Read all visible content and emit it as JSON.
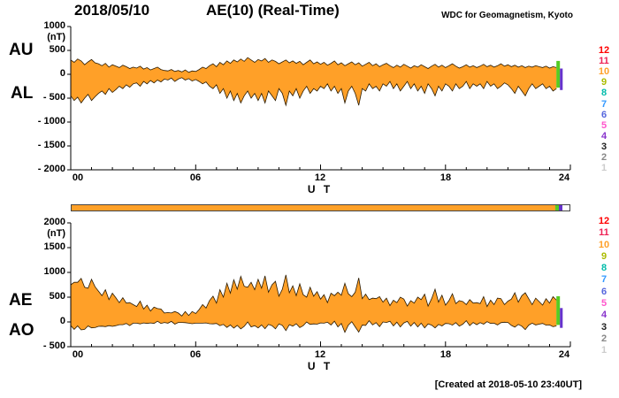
{
  "header": {
    "date": "2018/05/10",
    "title": "AE(10) (Real-Time)",
    "source": "WDC for Geomagnetism, Kyoto"
  },
  "footer": {
    "created": "[Created at 2018-05-10 23:40UT]"
  },
  "colors": {
    "fill": "#ffa028",
    "trace": "#2a1a00",
    "axis": "#000000",
    "end_green": "#55cc22",
    "end_purple": "#6633cc"
  },
  "station_legend": {
    "counts": [
      "12",
      "11",
      "10",
      "9",
      "8",
      "7",
      "6",
      "5",
      "4",
      "3",
      "2",
      "1"
    ],
    "colors": [
      "#ff0000",
      "#ee2255",
      "#ffa028",
      "#aabb00",
      "#00bbaa",
      "#3399ff",
      "#5566dd",
      "#ff55cc",
      "#8833cc",
      "#222222",
      "#888888",
      "#cccccc"
    ]
  },
  "availability_bar": {
    "segments": [
      {
        "t0": 0,
        "t1": 23.33,
        "color": "#ffa028"
      },
      {
        "t0": 23.33,
        "t1": 23.5,
        "color": "#55cc22"
      },
      {
        "t0": 23.5,
        "t1": 23.67,
        "color": "#6633cc"
      }
    ]
  },
  "chart_data": [
    {
      "type": "area",
      "panel": "top",
      "title": "AU and AL indices",
      "ylabel_unit": "(nT)",
      "ylim": [
        -2000,
        1000
      ],
      "yticks": [
        "1000",
        "500",
        "0",
        "- 500",
        "- 1000",
        "- 1500",
        "- 2000"
      ],
      "xlabel": "U T",
      "xticks": [
        "00",
        "06",
        "12",
        "18",
        "24"
      ],
      "xlim": [
        0,
        24
      ],
      "grid": false,
      "x_step_hours": 0.1666667,
      "series": [
        {
          "name": "AU",
          "values": [
            300,
            250,
            320,
            280,
            200,
            260,
            310,
            240,
            220,
            180,
            230,
            150,
            200,
            170,
            140,
            190,
            160,
            120,
            150,
            130,
            170,
            110,
            140,
            90,
            120,
            150,
            100,
            80,
            70,
            100,
            60,
            80,
            50,
            90,
            40,
            70,
            60,
            100,
            150,
            120,
            180,
            220,
            160,
            250,
            200,
            280,
            230,
            300,
            260,
            320,
            270,
            350,
            300,
            250,
            310,
            280,
            330,
            250,
            300,
            270,
            220,
            260,
            300,
            240,
            280,
            230,
            270,
            200,
            250,
            300,
            220,
            260,
            210,
            250,
            190,
            230,
            280,
            200,
            240,
            180,
            220,
            260,
            200,
            240,
            170,
            210,
            250,
            180,
            220,
            160,
            200,
            230,
            180,
            140,
            190,
            150,
            210,
            170,
            130,
            180,
            150,
            200,
            160,
            120,
            170,
            210,
            150,
            190,
            140,
            180,
            220,
            170,
            130,
            160,
            200,
            150,
            180,
            140,
            170,
            210,
            160,
            190,
            150,
            180,
            220,
            170,
            200,
            160,
            190,
            150,
            180,
            140,
            170,
            150,
            180,
            160,
            140,
            170,
            130,
            160,
            140
          ]
        },
        {
          "name": "AL",
          "values": [
            -450,
            -550,
            -480,
            -600,
            -500,
            -420,
            -550,
            -470,
            -400,
            -350,
            -420,
            -300,
            -380,
            -320,
            -250,
            -300,
            -220,
            -270,
            -200,
            -180,
            -250,
            -150,
            -200,
            -130,
            -180,
            -120,
            -160,
            -100,
            -120,
            -80,
            -150,
            -100,
            -70,
            -120,
            -90,
            -140,
            -110,
            -150,
            -200,
            -160,
            -250,
            -300,
            -220,
            -400,
            -300,
            -500,
            -350,
            -550,
            -400,
            -600,
            -450,
            -350,
            -500,
            -400,
            -550,
            -400,
            -600,
            -350,
            -450,
            -550,
            -300,
            -400,
            -650,
            -350,
            -450,
            -300,
            -500,
            -350,
            -250,
            -400,
            -300,
            -350,
            -250,
            -300,
            -200,
            -350,
            -250,
            -400,
            -300,
            -600,
            -350,
            -250,
            -400,
            -650,
            -300,
            -350,
            -200,
            -300,
            -250,
            -350,
            -200,
            -250,
            -150,
            -300,
            -200,
            -350,
            -250,
            -150,
            -300,
            -200,
            -350,
            -250,
            -400,
            -200,
            -300,
            -450,
            -250,
            -350,
            -200,
            -250,
            -350,
            -200,
            -300,
            -250,
            -150,
            -300,
            -200,
            -250,
            -200,
            -300,
            -150,
            -250,
            -200,
            -300,
            -250,
            -180,
            -220,
            -300,
            -400,
            -250,
            -350,
            -450,
            -300,
            -200,
            -300,
            -250,
            -200,
            -300,
            -250,
            -350,
            -300
          ]
        }
      ],
      "end_markers": [
        {
          "t0": 23.33,
          "t1": 23.5,
          "ymin": -280,
          "ymax": 280,
          "color": "#55cc22"
        },
        {
          "t0": 23.5,
          "t1": 23.63,
          "ymin": -330,
          "ymax": 120,
          "color": "#6633cc"
        }
      ]
    },
    {
      "type": "area",
      "panel": "bottom",
      "title": "AE and AO indices",
      "ylabel_unit": "(nT)",
      "ylim": [
        -500,
        2000
      ],
      "yticks": [
        "2000",
        "1500",
        "1000",
        "500",
        "0",
        "- 500"
      ],
      "xlabel": "U T",
      "xticks": [
        "00",
        "06",
        "12",
        "18",
        "24"
      ],
      "xlim": [
        0,
        24
      ],
      "grid": false,
      "x_step_hours": 0.1666667,
      "series": [
        {
          "name": "AE",
          "values": [
            750,
            800,
            800,
            880,
            700,
            680,
            860,
            710,
            620,
            530,
            650,
            450,
            580,
            490,
            390,
            490,
            380,
            390,
            350,
            310,
            420,
            260,
            340,
            220,
            300,
            270,
            260,
            180,
            190,
            180,
            210,
            180,
            120,
            210,
            130,
            210,
            170,
            250,
            350,
            280,
            430,
            520,
            380,
            650,
            500,
            780,
            580,
            850,
            660,
            920,
            720,
            700,
            800,
            650,
            860,
            680,
            930,
            600,
            750,
            820,
            520,
            660,
            950,
            590,
            730,
            530,
            770,
            550,
            500,
            700,
            520,
            610,
            460,
            550,
            390,
            580,
            530,
            600,
            540,
            780,
            570,
            510,
            600,
            890,
            470,
            560,
            450,
            480,
            470,
            510,
            400,
            480,
            330,
            440,
            390,
            500,
            460,
            320,
            430,
            380,
            500,
            450,
            560,
            320,
            470,
            660,
            400,
            540,
            340,
            430,
            570,
            370,
            430,
            410,
            350,
            450,
            380,
            390,
            370,
            510,
            310,
            440,
            350,
            480,
            470,
            350,
            420,
            460,
            590,
            400,
            530,
            590,
            470,
            350,
            480,
            410,
            340,
            470,
            380,
            510,
            440
          ]
        },
        {
          "name": "AO",
          "values": [
            -75,
            -150,
            -80,
            -160,
            -150,
            -80,
            -120,
            -115,
            -90,
            -85,
            -95,
            -75,
            -90,
            -75,
            -55,
            -55,
            -30,
            -75,
            -25,
            -25,
            -40,
            -20,
            -30,
            -20,
            -30,
            15,
            -30,
            -10,
            -25,
            10,
            -45,
            -10,
            -10,
            -15,
            -25,
            -35,
            -25,
            -25,
            -25,
            -20,
            -35,
            -40,
            -30,
            -75,
            -50,
            -110,
            -60,
            -125,
            -70,
            -140,
            -90,
            0,
            -100,
            -75,
            -120,
            -60,
            -135,
            -50,
            -75,
            -140,
            -40,
            -70,
            -175,
            -55,
            -85,
            -35,
            -115,
            -75,
            0,
            -50,
            -40,
            -45,
            -20,
            -25,
            -5,
            -60,
            15,
            -100,
            -30,
            -210,
            -65,
            5,
            -100,
            -205,
            -65,
            -70,
            25,
            -60,
            -15,
            -95,
            0,
            -10,
            15,
            -80,
            -5,
            -100,
            -20,
            10,
            -85,
            -10,
            -100,
            -25,
            -120,
            -40,
            -65,
            -120,
            -50,
            -80,
            -30,
            -35,
            -65,
            -15,
            -85,
            -45,
            25,
            -75,
            -10,
            -55,
            -15,
            -45,
            5,
            -30,
            -25,
            -60,
            -15,
            -5,
            -10,
            -70,
            -105,
            -50,
            -85,
            -155,
            -65,
            -25,
            -60,
            -45,
            -30,
            -65,
            -60,
            -95,
            -80
          ]
        }
      ],
      "end_markers": [
        {
          "t0": 23.33,
          "t1": 23.5,
          "ymin": -60,
          "ymax": 520,
          "color": "#55cc22"
        },
        {
          "t0": 23.5,
          "t1": 23.63,
          "ymin": -120,
          "ymax": 280,
          "color": "#6633cc"
        }
      ]
    }
  ]
}
